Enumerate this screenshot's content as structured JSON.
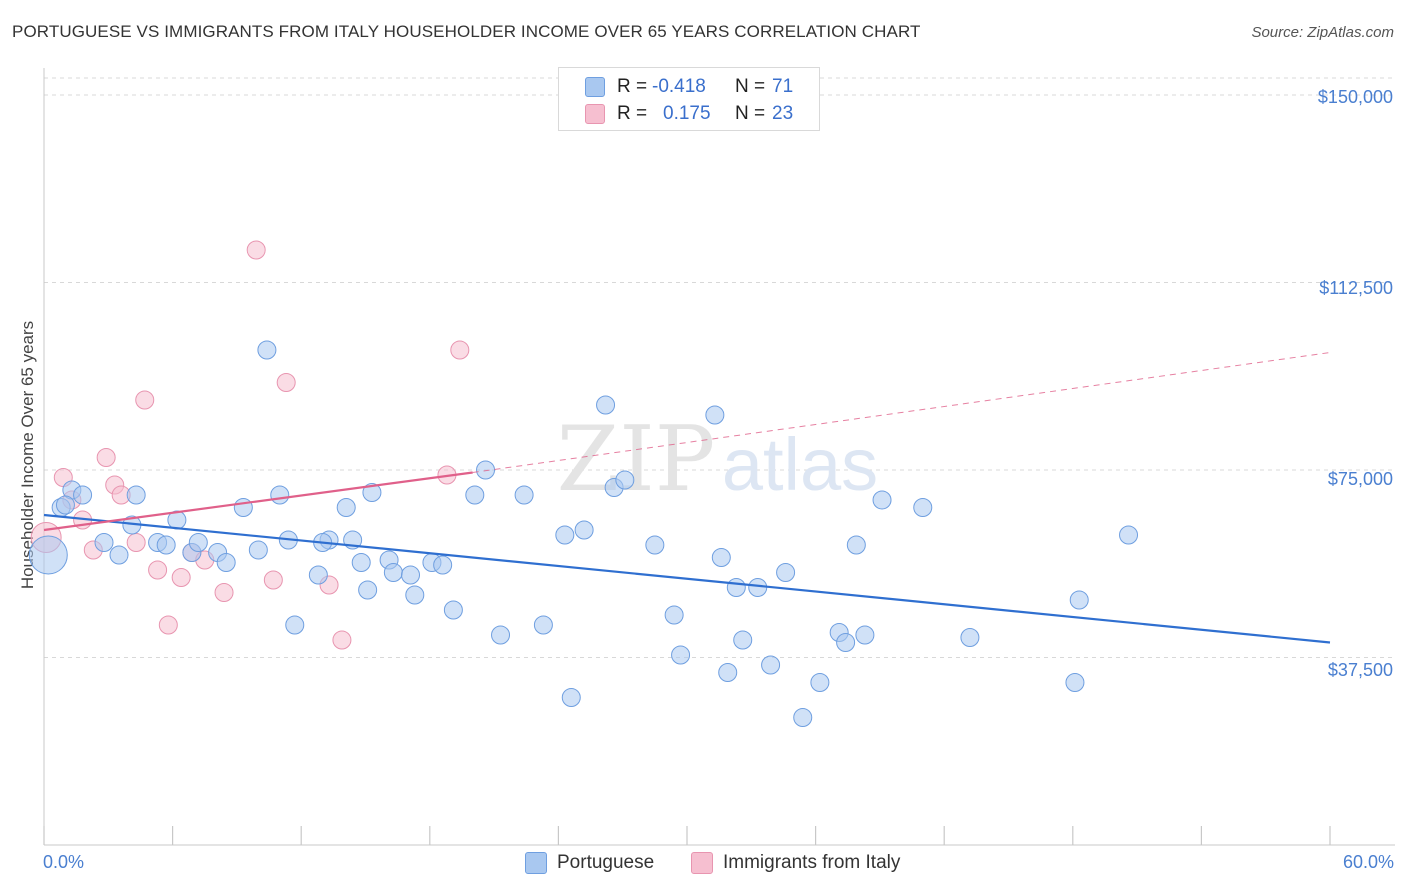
{
  "title": "PORTUGUESE VS IMMIGRANTS FROM ITALY HOUSEHOLDER INCOME OVER 65 YEARS CORRELATION CHART",
  "source": "Source: ZipAtlas.com",
  "watermark": {
    "zip": "ZIP",
    "atlas": "atlas"
  },
  "stats": {
    "row1": {
      "r_label": "R =",
      "r_value": "-0.418",
      "n_label": "N =",
      "n_value": "71"
    },
    "row2": {
      "r_label": "R =",
      "r_value": "0.175",
      "n_label": "N =",
      "n_value": "23"
    }
  },
  "legend": {
    "series1": "Portuguese",
    "series2": "Immigrants from Italy"
  },
  "chart_data": {
    "type": "scatter",
    "title": "PORTUGUESE VS IMMIGRANTS FROM ITALY HOUSEHOLDER INCOME OVER 65 YEARS CORRELATION CHART",
    "xlabel": "",
    "ylabel": "Householder Income Over 65 years",
    "xlim": [
      0,
      60
    ],
    "ylim": [
      0,
      157000
    ],
    "x_tick_labels": [
      "0.0%",
      "60.0%"
    ],
    "y_ticks": [
      37500,
      75000,
      112500,
      150000
    ],
    "y_tick_labels": [
      "$37,500",
      "$75,000",
      "$112,500",
      "$150,000"
    ],
    "grid": true,
    "colors": {
      "portuguese_fill": "#a9c8f0",
      "portuguese_stroke": "#6f9fe0",
      "portuguese_line": "#2f6fd0",
      "italy_fill": "#f6bfd0",
      "italy_stroke": "#e895b0",
      "italy_line": "#e0608a"
    },
    "series": [
      {
        "name": "Portuguese",
        "R": -0.418,
        "N": 71,
        "trend": {
          "x0": 0,
          "y0": 66000,
          "x1": 60,
          "y1": 40500
        },
        "points": [
          [
            0.2,
            58000
          ],
          [
            0.8,
            67500
          ],
          [
            1.3,
            71000
          ],
          [
            1.8,
            70000
          ],
          [
            2.8,
            60500
          ],
          [
            3.5,
            58000
          ],
          [
            4.1,
            64000
          ],
          [
            4.3,
            70000
          ],
          [
            5.3,
            60500
          ],
          [
            5.7,
            60000
          ],
          [
            6.2,
            65000
          ],
          [
            6.9,
            58500
          ],
          [
            7.2,
            60500
          ],
          [
            8.1,
            58500
          ],
          [
            8.5,
            56500
          ],
          [
            9.3,
            67500
          ],
          [
            10.0,
            59000
          ],
          [
            10.4,
            99000
          ],
          [
            11.0,
            70000
          ],
          [
            11.4,
            61000
          ],
          [
            11.7,
            44000
          ],
          [
            12.8,
            54000
          ],
          [
            13.3,
            61000
          ],
          [
            14.1,
            67500
          ],
          [
            14.4,
            61000
          ],
          [
            14.8,
            56500
          ],
          [
            15.1,
            51000
          ],
          [
            15.3,
            70500
          ],
          [
            16.1,
            57000
          ],
          [
            16.3,
            54500
          ],
          [
            17.1,
            54000
          ],
          [
            17.3,
            50000
          ],
          [
            18.1,
            56500
          ],
          [
            18.6,
            56000
          ],
          [
            19.1,
            47000
          ],
          [
            20.1,
            70000
          ],
          [
            20.6,
            75000
          ],
          [
            21.3,
            42000
          ],
          [
            22.4,
            70000
          ],
          [
            23.3,
            44000
          ],
          [
            24.3,
            62000
          ],
          [
            24.6,
            29500
          ],
          [
            25.2,
            63000
          ],
          [
            26.2,
            88000
          ],
          [
            26.6,
            71500
          ],
          [
            27.1,
            73000
          ],
          [
            28.5,
            60000
          ],
          [
            29.4,
            46000
          ],
          [
            29.7,
            38000
          ],
          [
            31.3,
            86000
          ],
          [
            31.6,
            57500
          ],
          [
            31.9,
            34500
          ],
          [
            32.3,
            51500
          ],
          [
            32.6,
            41000
          ],
          [
            33.3,
            51500
          ],
          [
            33.9,
            36000
          ],
          [
            34.6,
            54500
          ],
          [
            35.4,
            25500
          ],
          [
            36.2,
            32500
          ],
          [
            37.1,
            42500
          ],
          [
            37.4,
            40500
          ],
          [
            37.9,
            60000
          ],
          [
            38.3,
            42000
          ],
          [
            39.1,
            69000
          ],
          [
            41.0,
            67500
          ],
          [
            43.2,
            41500
          ],
          [
            48.1,
            32500
          ],
          [
            48.3,
            49000
          ],
          [
            50.6,
            62000
          ],
          [
            1.0,
            68000
          ],
          [
            13.0,
            60500
          ]
        ]
      },
      {
        "name": "Immigrants from Italy",
        "R": 0.175,
        "N": 23,
        "trend_solid": {
          "x0": 0,
          "y0": 63000,
          "x1": 20.0,
          "y1": 74500
        },
        "trend_dashed": {
          "x0": 20.0,
          "y0": 74500,
          "x1": 60,
          "y1": 98500
        },
        "points": [
          [
            0.1,
            61500
          ],
          [
            0.9,
            73500
          ],
          [
            1.3,
            69000
          ],
          [
            1.8,
            65000
          ],
          [
            2.3,
            59000
          ],
          [
            2.9,
            77500
          ],
          [
            3.3,
            72000
          ],
          [
            3.6,
            70000
          ],
          [
            4.3,
            60500
          ],
          [
            4.7,
            89000
          ],
          [
            5.3,
            55000
          ],
          [
            5.8,
            44000
          ],
          [
            6.4,
            53500
          ],
          [
            6.9,
            58500
          ],
          [
            7.5,
            57000
          ],
          [
            8.4,
            50500
          ],
          [
            9.9,
            119000
          ],
          [
            10.7,
            53000
          ],
          [
            11.3,
            92500
          ],
          [
            13.3,
            52000
          ],
          [
            13.9,
            41000
          ],
          [
            18.8,
            74000
          ],
          [
            19.4,
            99000
          ]
        ]
      }
    ]
  }
}
